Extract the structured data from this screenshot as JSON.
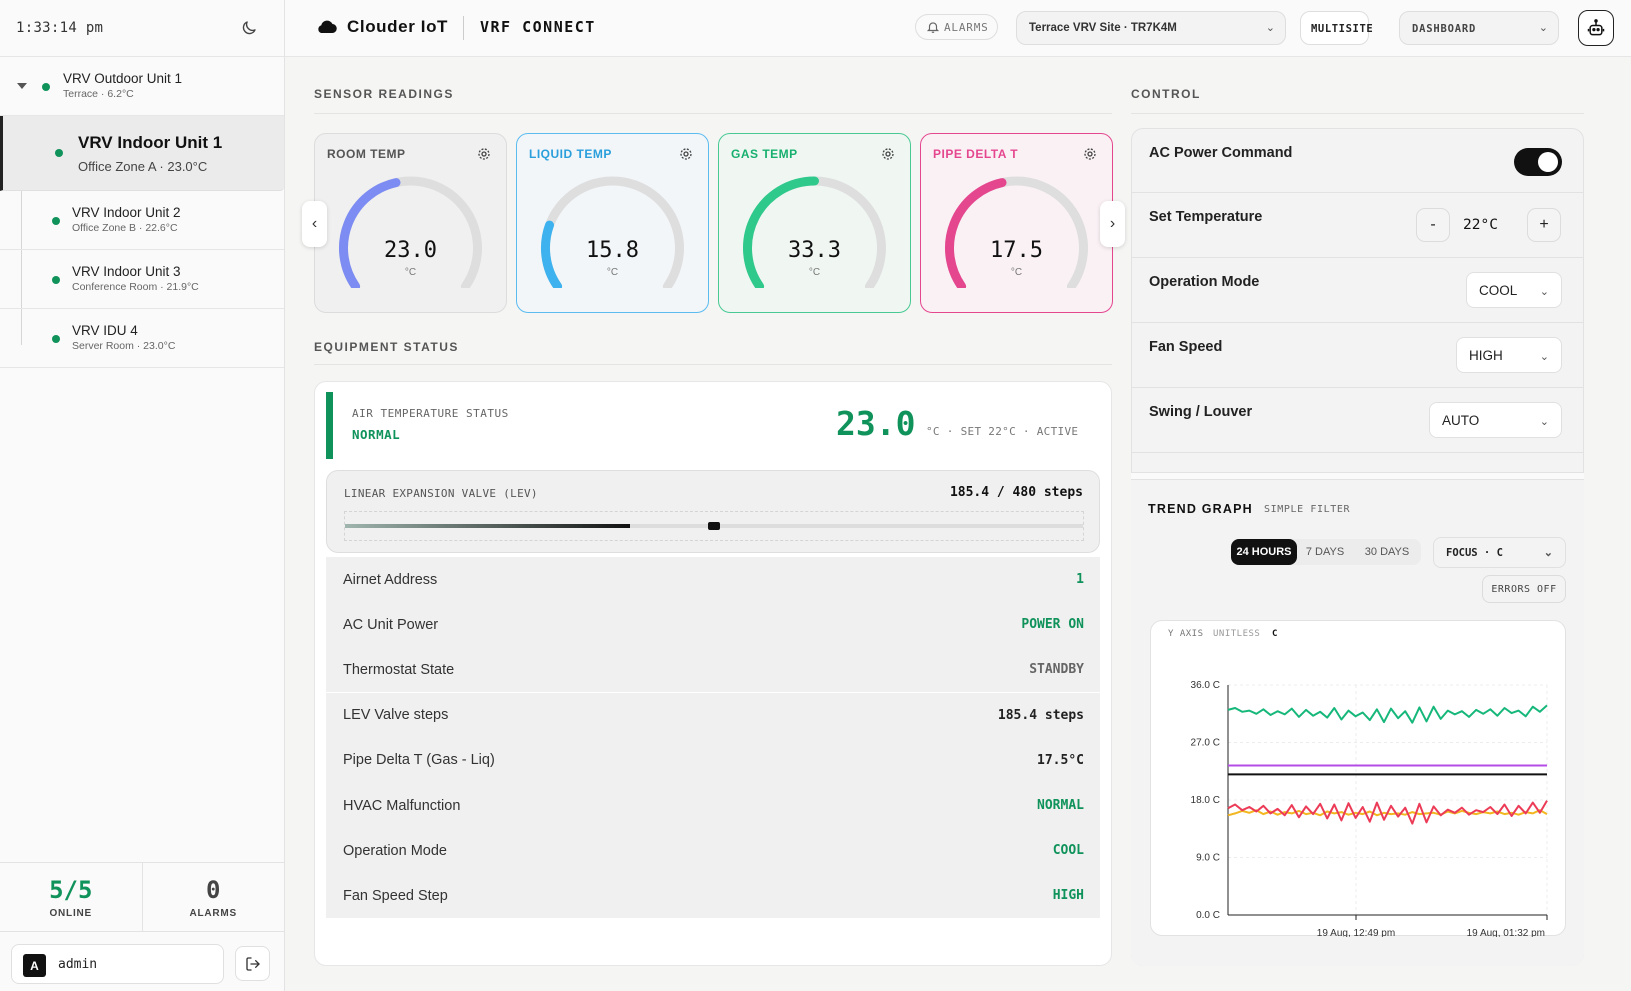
{
  "sidebar": {
    "clock": "1:33:14 pm",
    "units": [
      {
        "name": "VRV Outdoor Unit 1",
        "sub": "Terrace · 6.2°C"
      },
      {
        "name": "VRV Indoor Unit 1",
        "sub": "Office Zone A · 23.0°C"
      },
      {
        "name": "VRV Indoor Unit 2",
        "sub": "Office Zone B · 22.6°C"
      },
      {
        "name": "VRV Indoor Unit 3",
        "sub": "Conference Room · 21.9°C"
      },
      {
        "name": "VRV IDU 4",
        "sub": "Server Room · 23.0°C"
      }
    ],
    "stats": [
      {
        "value": "5/5",
        "label": "ONLINE",
        "color": "#10925b"
      },
      {
        "value": "0",
        "label": "ALARMS",
        "color": "#444444"
      }
    ],
    "user": {
      "initial": "A",
      "name": "admin"
    }
  },
  "header": {
    "brand": "Clouder IoT",
    "product": "VRF CONNECT",
    "alarms": "ALARMS",
    "site": "Terrace VRV Site · TR7K4M",
    "multisite": "MULTISITE",
    "view": "DASHBOARD"
  },
  "sensors": {
    "title": "SENSOR READINGS",
    "gauges": [
      {
        "label": "ROOM TEMP",
        "value": "23.0",
        "unit": "°C",
        "fraction": 0.45,
        "color": "#7c8cf2",
        "title_color": "#555555",
        "border": "#dcdcdc",
        "bg": "#f0f0f0"
      },
      {
        "label": "LIQUID TEMP",
        "value": "15.8",
        "unit": "°C",
        "fraction": 0.22,
        "color": "#3db2ee",
        "title_color": "#2a9fdc",
        "border": "#5bbcf0",
        "bg": "#f2f6f9"
      },
      {
        "label": "GAS TEMP",
        "value": "33.3",
        "unit": "°C",
        "fraction": 0.5,
        "color": "#2fc98c",
        "title_color": "#18b06f",
        "border": "#48c993",
        "bg": "#f0f7f3"
      },
      {
        "label": "PIPE DELTA T",
        "value": "17.5",
        "unit": "°C",
        "fraction": 0.45,
        "color": "#e5478f",
        "title_color": "#e5478f",
        "border": "#e5478f",
        "bg": "#faf1f5"
      }
    ]
  },
  "equipment": {
    "title": "EQUIPMENT STATUS",
    "air": {
      "label": "AIR TEMPERATURE STATUS",
      "status": "NORMAL",
      "value": "23.0",
      "meta": "°C · SET 22°C · ACTIVE"
    },
    "lev": {
      "label": "LINEAR EXPANSION VALVE (LEV)",
      "reading": "185.4 / 480 steps",
      "fraction": 0.386,
      "marker_fraction": 0.5
    },
    "rows": [
      {
        "key": "Airnet Address",
        "value": "1",
        "color": "#10925b"
      },
      {
        "key": "AC Unit Power",
        "value": "POWER ON",
        "color": "#10925b"
      },
      {
        "key": "Thermostat State",
        "value": "STANDBY",
        "color": "#666666"
      },
      {
        "key": "LEV Valve steps",
        "value": "185.4 steps",
        "color": "#222222"
      },
      {
        "key": "Pipe Delta T (Gas - Liq)",
        "value": "17.5°C",
        "color": "#222222"
      },
      {
        "key": "HVAC Malfunction",
        "value": "NORMAL",
        "color": "#10925b"
      },
      {
        "key": "Operation Mode",
        "value": "COOL",
        "color": "#10925b"
      },
      {
        "key": "Fan Speed Step",
        "value": "HIGH",
        "color": "#10925b"
      }
    ]
  },
  "control": {
    "title": "CONTROL",
    "power": {
      "label": "AC Power Command",
      "on": true
    },
    "set_temp": {
      "label": "Set Temperature",
      "value": "22°C",
      "minus": "-",
      "plus": "+"
    },
    "mode": {
      "label": "Operation Mode",
      "value": "COOL"
    },
    "fan": {
      "label": "Fan Speed",
      "value": "HIGH"
    },
    "swing": {
      "label": "Swing / Louver",
      "value": "AUTO"
    }
  },
  "trend": {
    "title": "TREND GRAPH",
    "filter": "SIMPLE FILTER",
    "ranges": [
      "24 HOURS",
      "7 DAYS",
      "30 DAYS"
    ],
    "active_range": "24 HOURS",
    "focus": "FOCUS · C",
    "errors": "ERRORS OFF",
    "axis_label": "Y AXIS",
    "axis_mode": "UNITLESS",
    "axis_unit": "C",
    "chart_data": {
      "type": "line",
      "ylim": [
        0,
        36
      ],
      "y_ticks": [
        "36.0 C",
        "27.0 C",
        "18.0 C",
        "9.0 C",
        "0.0 C"
      ],
      "x_ticks": [
        "19 Aug, 12:49 pm",
        "19 Aug, 01:32 pm"
      ],
      "grid": true,
      "series": [
        {
          "color": "#16b77a",
          "values": [
            32.1,
            32.4,
            31.8,
            32.0,
            31.5,
            32.2,
            31.3,
            31.9,
            31.4,
            32.3,
            31.0,
            32.1,
            31.2,
            31.8,
            30.9,
            32.4,
            30.6,
            32.0,
            31.1,
            31.7,
            30.5,
            32.2,
            30.2,
            32.3,
            30.8,
            31.9,
            30.1,
            32.5,
            30.3,
            32.6,
            30.7,
            32.0,
            31.4,
            31.9,
            31.0,
            32.1,
            31.5,
            32.2,
            31.2,
            32.4,
            31.6,
            32.0,
            31.1,
            32.6,
            31.8,
            32.8
          ]
        },
        {
          "color": "#b44ce8",
          "values": [
            23.4,
            23.4,
            23.4,
            23.4,
            23.4,
            23.4,
            23.4,
            23.4,
            23.4,
            23.4,
            23.4,
            23.4,
            23.4,
            23.4,
            23.4,
            23.4,
            23.4,
            23.4,
            23.4,
            23.4,
            23.4,
            23.4,
            23.4,
            23.4,
            23.4,
            23.4,
            23.4,
            23.4,
            23.4,
            23.4,
            23.4,
            23.4,
            23.4,
            23.4,
            23.4,
            23.4,
            23.4,
            23.4,
            23.4,
            23.4,
            23.4,
            23.4,
            23.4,
            23.4,
            23.4,
            23.4
          ]
        },
        {
          "color": "#111111",
          "values": [
            22.0,
            22.0,
            22.0,
            22.0,
            22.0,
            22.0,
            22.0,
            22.0,
            22.0,
            22.0,
            22.0,
            22.0,
            22.0,
            22.0,
            22.0,
            22.0,
            22.0,
            22.0,
            22.0,
            22.0,
            22.0,
            22.0,
            22.0,
            22.0,
            22.0,
            22.0,
            22.0,
            22.0,
            22.0,
            22.0,
            22.0,
            22.0,
            22.0,
            22.0,
            22.0,
            22.0,
            22.0,
            22.0,
            22.0,
            22.0,
            22.0,
            22.0,
            22.0,
            22.0,
            22.0,
            22.0
          ]
        },
        {
          "color": "#f2b61f",
          "values": [
            15.6,
            15.9,
            16.3,
            16.0,
            16.4,
            15.8,
            16.2,
            15.7,
            16.1,
            15.9,
            16.3,
            15.8,
            16.0,
            15.6,
            16.2,
            15.9,
            16.1,
            15.7,
            16.0,
            15.8,
            16.2,
            15.6,
            16.0,
            15.8,
            15.9,
            15.7,
            16.1,
            15.8,
            15.9,
            16.0,
            15.7,
            16.2,
            15.9,
            16.3,
            16.0,
            15.8,
            16.1,
            15.9,
            16.2,
            15.8,
            16.0,
            15.7,
            16.1,
            15.9,
            16.4,
            15.8
          ]
        },
        {
          "color": "#ec3b57",
          "values": [
            16.7,
            17.3,
            16.4,
            16.9,
            16.2,
            17.1,
            15.9,
            16.6,
            15.6,
            17.2,
            15.3,
            17.0,
            15.8,
            17.4,
            15.1,
            17.3,
            14.8,
            17.5,
            15.2,
            16.9,
            14.6,
            17.6,
            14.9,
            17.1,
            15.4,
            16.8,
            14.3,
            17.4,
            14.5,
            17.0,
            15.6,
            16.5,
            16.0,
            16.8,
            15.7,
            16.4,
            16.1,
            16.9,
            15.8,
            17.3,
            15.5,
            17.1,
            15.9,
            17.6,
            16.0,
            17.9
          ]
        }
      ]
    }
  }
}
